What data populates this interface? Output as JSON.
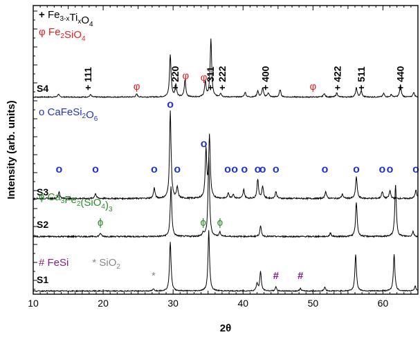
{
  "chart_data": {
    "type": "line",
    "title": "",
    "xlabel": "2θ",
    "ylabel": "Intensity (arb. units)",
    "xlim": [
      10,
      65
    ],
    "x_ticks": [
      10,
      20,
      30,
      40,
      50,
      60
    ],
    "x_tick_labels": [
      "10",
      "20",
      "30",
      "40",
      "50",
      "60"
    ],
    "grid": false,
    "series": [
      {
        "name": "S4",
        "peaks": [
          [
            13.6,
            5
          ],
          [
            18.2,
            4
          ],
          [
            24.8,
            5
          ],
          [
            29.6,
            70
          ],
          [
            30.4,
            20
          ],
          [
            31.7,
            28
          ],
          [
            34.6,
            25
          ],
          [
            35.4,
            95
          ],
          [
            36.8,
            6
          ],
          [
            40.3,
            8
          ],
          [
            42.1,
            10
          ],
          [
            42.8,
            15
          ],
          [
            43.6,
            7
          ],
          [
            45.3,
            12
          ],
          [
            51.6,
            6
          ],
          [
            53.4,
            7
          ],
          [
            56.2,
            15
          ],
          [
            56.9,
            10
          ],
          [
            60.1,
            6
          ],
          [
            61.2,
            4
          ],
          [
            62.5,
            20
          ],
          [
            64.4,
            8
          ]
        ]
      },
      {
        "name": "S3",
        "peaks": [
          [
            13.7,
            8
          ],
          [
            18.9,
            6
          ],
          [
            27.3,
            12
          ],
          [
            29.6,
            100
          ],
          [
            30.6,
            12
          ],
          [
            34.7,
            55
          ],
          [
            35.2,
            70
          ],
          [
            37.9,
            6
          ],
          [
            38.6,
            5
          ],
          [
            40.1,
            10
          ],
          [
            42.1,
            22
          ],
          [
            42.8,
            14
          ],
          [
            44.7,
            8
          ],
          [
            51.8,
            8
          ],
          [
            54.2,
            5
          ],
          [
            56.2,
            25
          ],
          [
            59.9,
            8
          ],
          [
            61.0,
            9
          ],
          [
            64.7,
            10
          ]
        ]
      },
      {
        "name": "S2",
        "peaks": [
          [
            19.6,
            4
          ],
          [
            29.7,
            58
          ],
          [
            34.3,
            4
          ],
          [
            35.1,
            92
          ],
          [
            36.7,
            5
          ],
          [
            42.5,
            12
          ],
          [
            52.5,
            4
          ],
          [
            56.2,
            40
          ],
          [
            61.8,
            60
          ],
          [
            64.3,
            6
          ]
        ]
      },
      {
        "name": "S1",
        "peaks": [
          [
            27.2,
            3
          ],
          [
            29.6,
            78
          ],
          [
            35.1,
            95
          ],
          [
            42.0,
            12
          ],
          [
            42.5,
            30
          ],
          [
            44.7,
            6
          ],
          [
            48.2,
            4
          ],
          [
            51.7,
            6
          ],
          [
            56.1,
            58
          ],
          [
            61.6,
            58
          ],
          [
            64.6,
            8
          ]
        ]
      }
    ],
    "legend": {
      "entries": [
        {
          "sample": "S4",
          "items": [
            {
              "symbol": "+",
              "parts": [
                [
                  "Fe",
                  ""
                ],
                [
                  "3-x",
                  "sub"
                ],
                [
                  "Ti",
                  ""
                ],
                [
                  "x",
                  "sub"
                ],
                [
                  "O",
                  ""
                ],
                [
                  "4",
                  "sub"
                ]
              ],
              "color": "#000000"
            },
            {
              "symbol": "φ",
              "parts": [
                [
                  "Fe",
                  ""
                ],
                [
                  "2",
                  "sub"
                ],
                [
                  "SiO",
                  ""
                ],
                [
                  "4",
                  "sub"
                ]
              ],
              "color": "#e8211d"
            }
          ]
        },
        {
          "sample": "S3",
          "items": [
            {
              "symbol": "o",
              "parts": [
                [
                  "CaFeSi",
                  ""
                ],
                [
                  "2",
                  "sub"
                ],
                [
                  "O",
                  ""
                ],
                [
                  "6",
                  "sub"
                ]
              ],
              "color": "#2233cc"
            }
          ]
        },
        {
          "sample": "S2",
          "items": [
            {
              "symbol": "ϕ",
              "parts": [
                [
                  "Ca",
                  ""
                ],
                [
                  "3",
                  "sub"
                ],
                [
                  "Fe",
                  ""
                ],
                [
                  "2",
                  "sub"
                ],
                [
                  "(SiO",
                  ""
                ],
                [
                  "4",
                  "sub"
                ],
                [
                  ")",
                  ""
                ],
                [
                  "3",
                  "sub"
                ]
              ],
              "color": "#2e8b2e"
            }
          ]
        },
        {
          "sample": "S1",
          "items": [
            {
              "symbol": "#",
              "parts": [
                [
                  "FeSi",
                  ""
                ]
              ],
              "color": "#8a1a8a"
            },
            {
              "symbol": "*",
              "parts": [
                [
                  "SiO",
                  ""
                ],
                [
                  "2",
                  "sub"
                ]
              ],
              "color": "#888888"
            }
          ]
        }
      ]
    },
    "annotations": [
      {
        "text": "+ 111",
        "x": 17.8,
        "series": "S4",
        "color": "#000000",
        "rotate": true
      },
      {
        "text": "+ 220",
        "x": 30.3,
        "series": "S4",
        "color": "#000000",
        "rotate": true
      },
      {
        "text": "+ 311",
        "x": 35.3,
        "series": "S4",
        "color": "#000000",
        "rotate": true
      },
      {
        "text": "+ 222",
        "x": 37.0,
        "series": "S4",
        "color": "#000000",
        "rotate": true
      },
      {
        "text": "+ 400",
        "x": 43.2,
        "series": "S4",
        "color": "#000000",
        "rotate": true
      },
      {
        "text": "+ 422",
        "x": 53.5,
        "series": "S4",
        "color": "#000000",
        "rotate": true
      },
      {
        "text": "+ 511",
        "x": 56.9,
        "series": "S4",
        "color": "#000000",
        "rotate": true
      },
      {
        "text": "+ 440",
        "x": 62.5,
        "series": "S4",
        "color": "#000000",
        "rotate": true
      },
      {
        "text": "φ",
        "x": 24.8,
        "series": "S4",
        "color": "#e8211d"
      },
      {
        "text": "φ",
        "x": 31.8,
        "series": "S4",
        "color": "#e8211d"
      },
      {
        "text": "φ",
        "x": 34.4,
        "series": "S4",
        "color": "#e8211d"
      },
      {
        "text": "φ",
        "x": 50.0,
        "series": "S4",
        "color": "#e8211d"
      },
      {
        "text": "o",
        "x": 13.7,
        "series": "S3",
        "color": "#2233cc"
      },
      {
        "text": "o",
        "x": 18.9,
        "series": "S3",
        "color": "#2233cc"
      },
      {
        "text": "o",
        "x": 27.3,
        "series": "S3",
        "color": "#2233cc"
      },
      {
        "text": "o",
        "x": 29.6,
        "series": "S3",
        "color": "#2233cc"
      },
      {
        "text": "o",
        "x": 30.6,
        "series": "S3",
        "color": "#2233cc"
      },
      {
        "text": "o",
        "x": 34.4,
        "series": "S3",
        "color": "#2233cc"
      },
      {
        "text": "o",
        "x": 37.8,
        "series": "S3",
        "color": "#2233cc"
      },
      {
        "text": "o",
        "x": 38.8,
        "series": "S3",
        "color": "#2233cc"
      },
      {
        "text": "o",
        "x": 40.2,
        "series": "S3",
        "color": "#2233cc"
      },
      {
        "text": "o",
        "x": 42.1,
        "series": "S3",
        "color": "#2233cc"
      },
      {
        "text": "o",
        "x": 42.8,
        "series": "S3",
        "color": "#2233cc"
      },
      {
        "text": "o",
        "x": 44.7,
        "series": "S3",
        "color": "#2233cc"
      },
      {
        "text": "o",
        "x": 51.7,
        "series": "S3",
        "color": "#2233cc"
      },
      {
        "text": "o",
        "x": 56.2,
        "series": "S3",
        "color": "#2233cc"
      },
      {
        "text": "o",
        "x": 59.9,
        "series": "S3",
        "color": "#2233cc"
      },
      {
        "text": "o",
        "x": 61.0,
        "series": "S3",
        "color": "#2233cc"
      },
      {
        "text": "o",
        "x": 64.7,
        "series": "S3",
        "color": "#2233cc"
      },
      {
        "text": "ϕ",
        "x": 19.6,
        "series": "S2",
        "color": "#2e8b2e"
      },
      {
        "text": "ϕ",
        "x": 34.3,
        "series": "S2",
        "color": "#2e8b2e"
      },
      {
        "text": "ϕ",
        "x": 36.7,
        "series": "S2",
        "color": "#2e8b2e"
      },
      {
        "text": "*",
        "x": 27.2,
        "series": "S1",
        "color": "#888888"
      },
      {
        "text": "#",
        "x": 44.7,
        "series": "S1",
        "color": "#8a1a8a"
      },
      {
        "text": "#",
        "x": 48.2,
        "series": "S1",
        "color": "#8a1a8a"
      }
    ]
  }
}
